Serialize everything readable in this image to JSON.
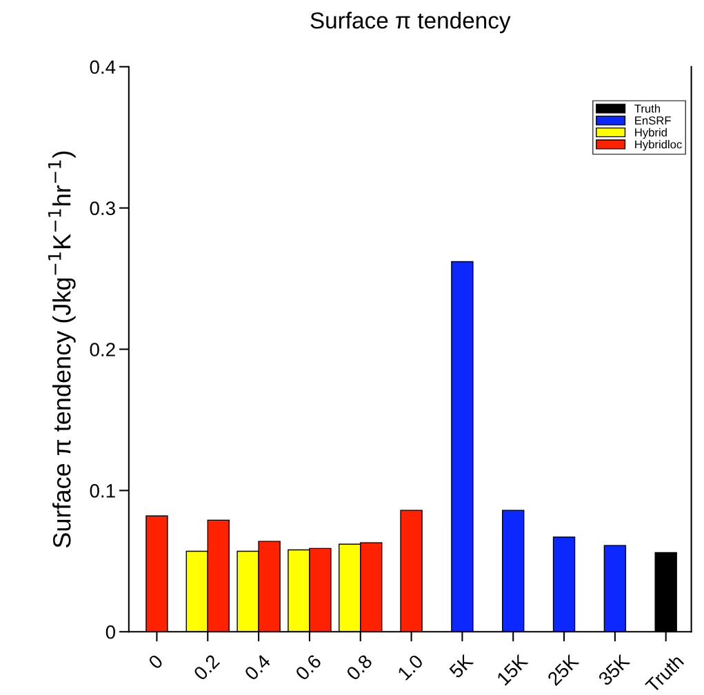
{
  "chart_data": {
    "type": "bar",
    "title": "Surface π tendency",
    "ylabel": "Surface π tendency (Jkg$^{−1}$K$^{−1}$hr$^{−1}$)",
    "categories": [
      "0",
      "0.2",
      "0.4",
      "0.6",
      "0.8",
      "1.0",
      "5K",
      "15K",
      "25K",
      "35K",
      "Truth"
    ],
    "series": [
      {
        "name": "Truth",
        "color": "#000000",
        "values": [
          null,
          null,
          null,
          null,
          null,
          null,
          null,
          null,
          null,
          null,
          0.056
        ]
      },
      {
        "name": "EnSRF",
        "color": "#0a28ff",
        "values": [
          null,
          null,
          null,
          null,
          null,
          null,
          0.262,
          0.086,
          0.067,
          0.061,
          null
        ]
      },
      {
        "name": "Hybrid",
        "color": "#ffff00",
        "values": [
          null,
          0.057,
          0.057,
          0.058,
          0.062,
          null,
          null,
          null,
          null,
          null,
          null
        ]
      },
      {
        "name": "Hybridloc",
        "color": "#ff2200",
        "values": [
          0.082,
          0.079,
          0.064,
          0.059,
          0.063,
          0.086,
          null,
          null,
          null,
          null,
          null
        ]
      }
    ],
    "ylim": [
      0,
      0.4
    ],
    "yticks": [
      0,
      0.1,
      0.2,
      0.3,
      0.4
    ],
    "grid": false,
    "legend": "top right"
  }
}
